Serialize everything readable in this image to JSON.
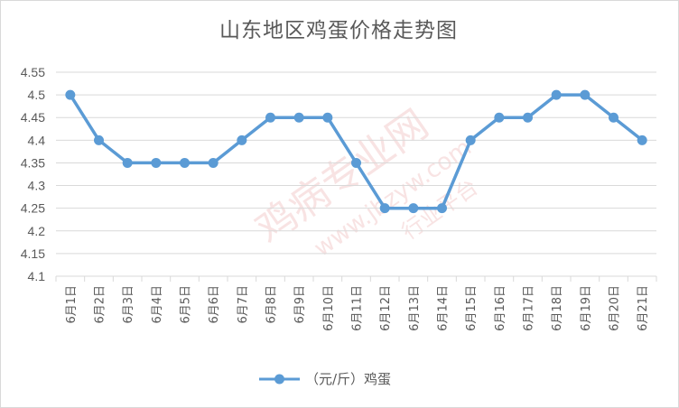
{
  "chart_data": {
    "type": "line",
    "title": "山东地区鸡蛋价格走势图",
    "categories": [
      "6月1日",
      "6月2日",
      "6月3日",
      "6月4日",
      "6月5日",
      "6月6日",
      "6月7日",
      "6月8日",
      "6月9日",
      "6月10日",
      "6月11日",
      "6月12日",
      "6月13日",
      "6月14日",
      "6月15日",
      "6月16日",
      "6月17日",
      "6月18日",
      "6月19日",
      "6月20日",
      "6月21日"
    ],
    "series": [
      {
        "name": "（元/斤）鸡蛋",
        "values": [
          4.5,
          4.4,
          4.35,
          4.35,
          4.35,
          4.35,
          4.4,
          4.45,
          4.45,
          4.45,
          4.35,
          4.25,
          4.25,
          4.25,
          4.4,
          4.45,
          4.45,
          4.5,
          4.5,
          4.45,
          4.4
        ]
      }
    ],
    "yticks": [
      "4.1",
      "4.15",
      "4.2",
      "4.25",
      "4.3",
      "4.35",
      "4.4",
      "4.45",
      "4.5",
      "4.55"
    ],
    "ylim": [
      4.1,
      4.55
    ],
    "grid": true,
    "legend": "bottom",
    "colors": {
      "line": "#5b9bd5",
      "grid": "#d9d9d9",
      "text": "#595959"
    }
  },
  "watermark": {
    "brand": "鸡病专业网",
    "url": "www.jbzyw.com",
    "slogan": "行业平台"
  }
}
